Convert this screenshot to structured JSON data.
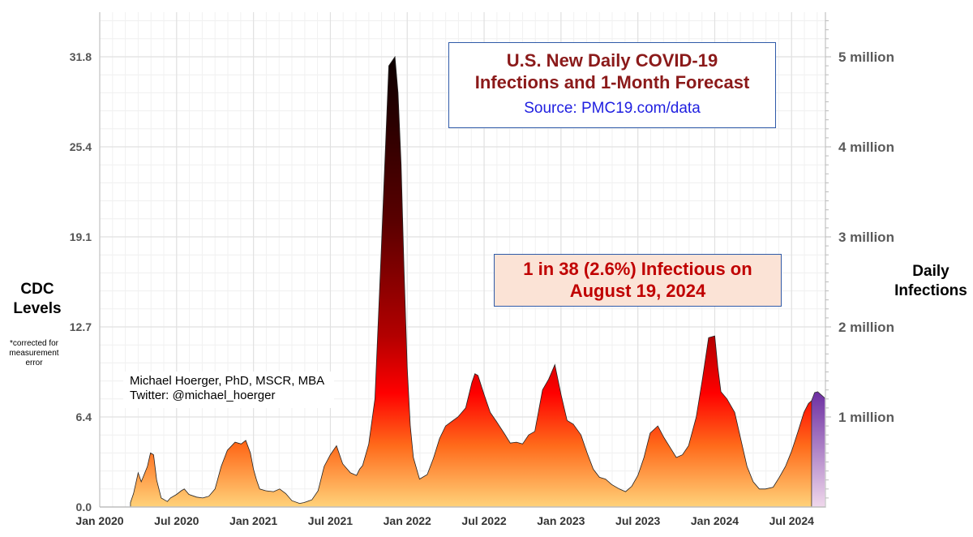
{
  "chart_data": {
    "type": "area",
    "title": "U.S. New Daily COVID-19 Infections and 1-Month Forecast",
    "title_lines": [
      "U.S. New Daily COVID-19",
      "Infections and 1-Month Forecast"
    ],
    "source": "Source: PMC19.com/data",
    "annotation_lines": [
      "1 in 38 (2.6%) Infectious on",
      "August 19, 2024"
    ],
    "author_lines": [
      "Michael Hoerger, PhD, MSCR, MBA",
      "Twitter: @michael_hoerger"
    ],
    "left_axis": {
      "label_lines": [
        "CDC",
        "Levels"
      ],
      "note_lines": [
        "*corrected for",
        "measurement",
        "error"
      ],
      "ticks": [
        "0.0",
        "6.4",
        "12.7",
        "19.1",
        "25.4",
        "31.8"
      ],
      "tick_values": [
        0,
        1,
        2,
        3,
        4,
        5
      ]
    },
    "right_axis": {
      "label_lines": [
        "Daily",
        "Infections"
      ],
      "ticks": [
        "1 million",
        "2 million",
        "3 million",
        "4 million",
        "5 million"
      ],
      "tick_values": [
        1,
        2,
        3,
        4,
        5
      ]
    },
    "x_ticks": [
      "Jan 2020",
      "Jul 2020",
      "Jan 2021",
      "Jul 2021",
      "Jan 2022",
      "Jul 2022",
      "Jan 2023",
      "Jul 2023",
      "Jan 2024",
      "Jul 2024"
    ],
    "x_tick_values": [
      2020.0,
      2020.5,
      2021.0,
      2021.5,
      2022.0,
      2022.5,
      2023.0,
      2023.5,
      2024.0,
      2024.5
    ],
    "xlim": [
      2020.0,
      2024.72
    ],
    "ylim": [
      0,
      5.5
    ],
    "ylabel_units": "millions of daily infections",
    "forecast_start": 2024.63,
    "colors": {
      "low": "#ffd27a",
      "mid": "#ff0000",
      "high": "#000000",
      "forecast_top": "#6a2ba0",
      "forecast_bottom": "#f0d8ec",
      "grid": "#e1e1e1"
    },
    "series": [
      {
        "name": "Daily infections (millions)",
        "x": [
          2020.2,
          2020.22,
          2020.25,
          2020.27,
          2020.31,
          2020.33,
          2020.35,
          2020.37,
          2020.4,
          2020.44,
          2020.46,
          2020.5,
          2020.53,
          2020.55,
          2020.58,
          2020.63,
          2020.67,
          2020.71,
          2020.75,
          2020.79,
          2020.83,
          2020.88,
          2020.92,
          2020.95,
          2020.98,
          2021.0,
          2021.02,
          2021.04,
          2021.08,
          2021.13,
          2021.17,
          2021.21,
          2021.25,
          2021.3,
          2021.33,
          2021.38,
          2021.42,
          2021.46,
          2021.5,
          2021.54,
          2021.58,
          2021.63,
          2021.67,
          2021.69,
          2021.71,
          2021.75,
          2021.79,
          2021.83,
          2021.88,
          2021.92,
          2021.94,
          2021.96,
          2021.98,
          2022.0,
          2022.02,
          2022.04,
          2022.08,
          2022.13,
          2022.17,
          2022.21,
          2022.25,
          2022.29,
          2022.33,
          2022.38,
          2022.42,
          2022.44,
          2022.46,
          2022.5,
          2022.54,
          2022.58,
          2022.63,
          2022.67,
          2022.71,
          2022.75,
          2022.79,
          2022.83,
          2022.88,
          2022.92,
          2022.96,
          2023.0,
          2023.04,
          2023.08,
          2023.13,
          2023.17,
          2023.21,
          2023.25,
          2023.29,
          2023.33,
          2023.38,
          2023.42,
          2023.46,
          2023.5,
          2023.54,
          2023.58,
          2023.63,
          2023.67,
          2023.71,
          2023.75,
          2023.79,
          2023.83,
          2023.88,
          2023.92,
          2023.96,
          2024.0,
          2024.02,
          2024.04,
          2024.08,
          2024.13,
          2024.17,
          2024.21,
          2024.25,
          2024.29,
          2024.33,
          2024.38,
          2024.42,
          2024.46,
          2024.5,
          2024.54,
          2024.58,
          2024.61,
          2024.63
        ],
        "y": [
          0.05,
          0.15,
          0.38,
          0.28,
          0.45,
          0.6,
          0.58,
          0.3,
          0.1,
          0.06,
          0.1,
          0.14,
          0.18,
          0.2,
          0.14,
          0.11,
          0.1,
          0.12,
          0.2,
          0.45,
          0.63,
          0.72,
          0.7,
          0.74,
          0.6,
          0.42,
          0.3,
          0.2,
          0.18,
          0.17,
          0.2,
          0.15,
          0.07,
          0.04,
          0.05,
          0.08,
          0.18,
          0.45,
          0.58,
          0.68,
          0.48,
          0.38,
          0.35,
          0.42,
          0.46,
          0.7,
          1.2,
          2.8,
          4.9,
          5.0,
          4.6,
          3.8,
          2.6,
          1.55,
          0.9,
          0.55,
          0.31,
          0.36,
          0.54,
          0.76,
          0.9,
          0.95,
          1.0,
          1.1,
          1.38,
          1.48,
          1.46,
          1.25,
          1.05,
          0.95,
          0.82,
          0.71,
          0.72,
          0.7,
          0.8,
          0.84,
          1.3,
          1.42,
          1.58,
          1.25,
          0.96,
          0.92,
          0.8,
          0.6,
          0.42,
          0.33,
          0.31,
          0.25,
          0.2,
          0.17,
          0.23,
          0.35,
          0.55,
          0.82,
          0.9,
          0.77,
          0.66,
          0.55,
          0.58,
          0.68,
          1.0,
          1.42,
          1.88,
          1.9,
          1.55,
          1.28,
          1.2,
          1.05,
          0.75,
          0.45,
          0.28,
          0.2,
          0.2,
          0.22,
          0.33,
          0.45,
          0.62,
          0.83,
          1.05,
          1.15,
          1.18
        ]
      },
      {
        "name": "1-Month Forecast (millions)",
        "x": [
          2024.63,
          2024.65,
          2024.67,
          2024.69,
          2024.71,
          2024.72
        ],
        "y": [
          1.18,
          1.27,
          1.28,
          1.25,
          1.22,
          1.2
        ]
      }
    ]
  }
}
